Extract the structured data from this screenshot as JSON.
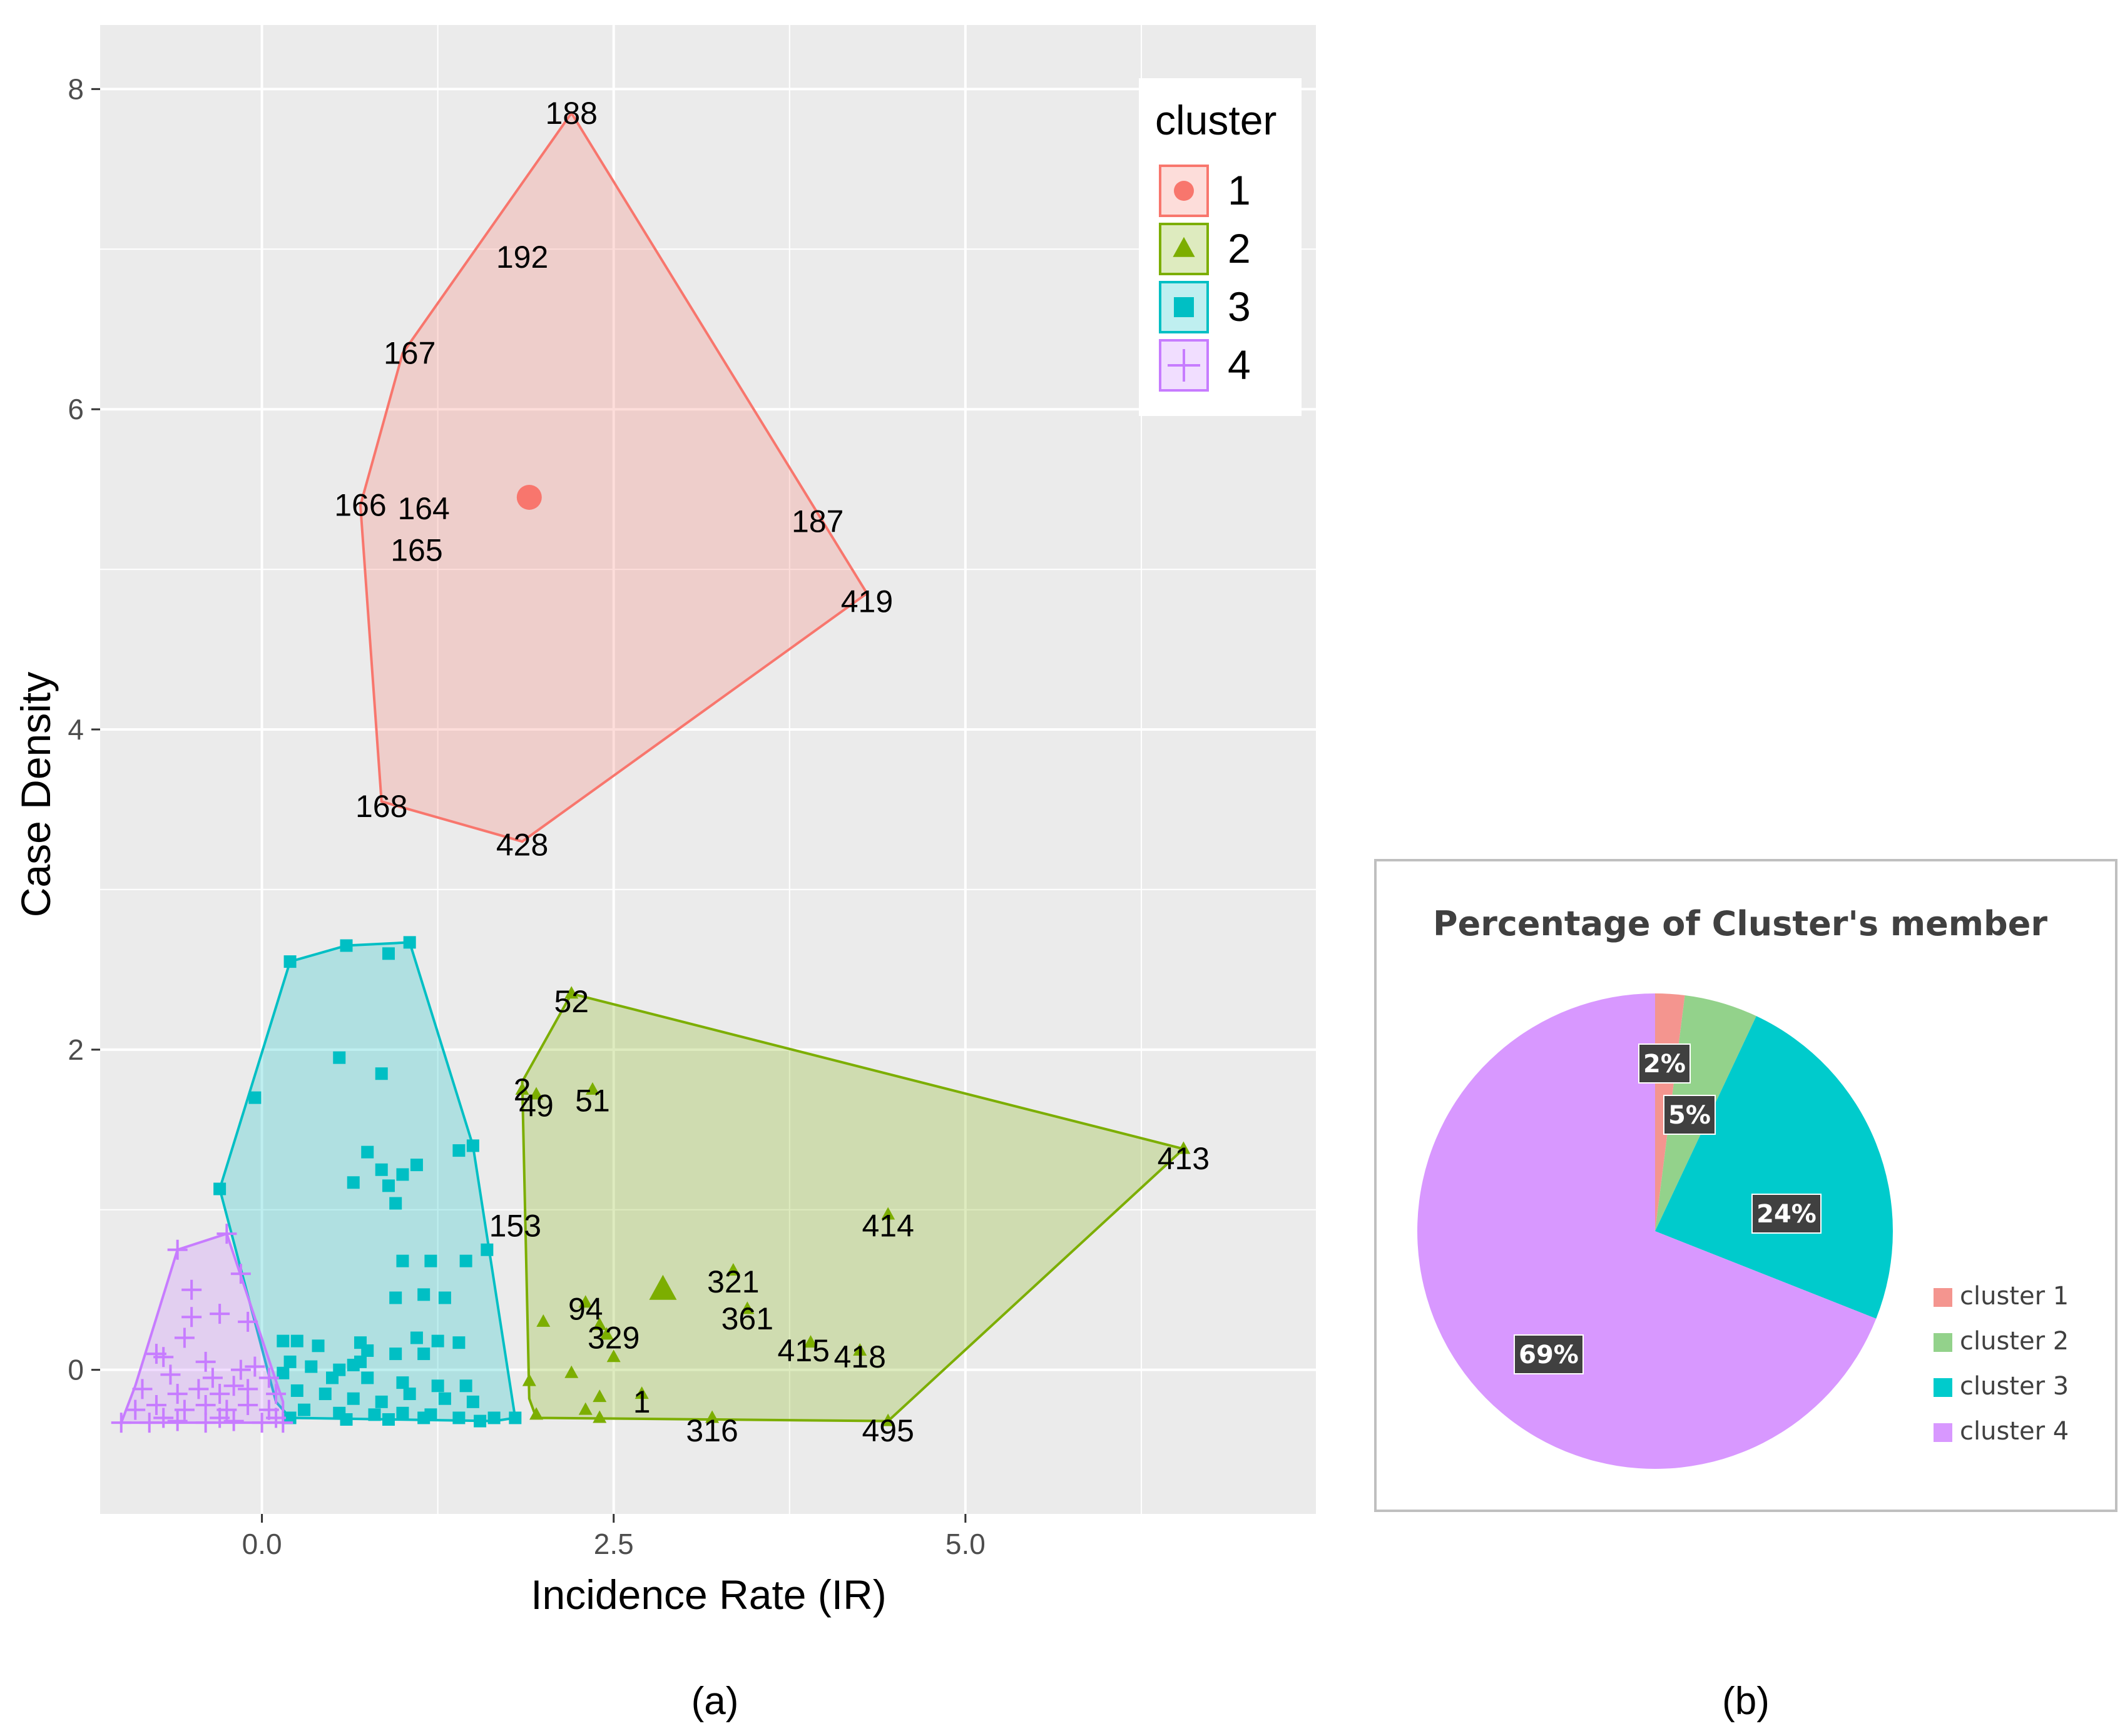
{
  "scatter": {
    "chart_data": {
      "type": "scatter",
      "xlabel": "Incidence Rate (IR)",
      "ylabel": "Case Density",
      "xlim": [
        -1.15,
        7.5
      ],
      "ylim": [
        -0.9,
        8.4
      ],
      "xticks": [
        0.0,
        2.5,
        5.0
      ],
      "xtick_labels": [
        "0.0",
        "2.5",
        "5.0"
      ],
      "yticks": [
        0,
        2,
        4,
        6,
        8
      ],
      "ytick_labels": [
        "0",
        "2",
        "4",
        "6",
        "8"
      ],
      "legend_title": "cluster",
      "legend_position": "top-right",
      "panel_caption": "(a)",
      "clusters": [
        {
          "name": "1",
          "shape": "circle",
          "color": "#F8766D",
          "hull": [
            [
              2.2,
              7.85
            ],
            [
              4.3,
              4.85
            ],
            [
              1.85,
              3.3
            ],
            [
              0.85,
              3.55
            ],
            [
              0.7,
              5.4
            ],
            [
              1.0,
              6.35
            ]
          ],
          "centroid": [
            1.9,
            5.45
          ],
          "labels": [
            {
              "text": "188",
              "x": 2.2,
              "y": 7.85
            },
            {
              "text": "192",
              "x": 1.85,
              "y": 6.95
            },
            {
              "text": "167",
              "x": 1.05,
              "y": 6.35
            },
            {
              "text": "166",
              "x": 0.7,
              "y": 5.4
            },
            {
              "text": "164",
              "x": 1.15,
              "y": 5.38
            },
            {
              "text": "165",
              "x": 1.1,
              "y": 5.12
            },
            {
              "text": "187",
              "x": 3.95,
              "y": 5.3
            },
            {
              "text": "419",
              "x": 4.3,
              "y": 4.8
            },
            {
              "text": "168",
              "x": 0.85,
              "y": 3.52
            },
            {
              "text": "428",
              "x": 1.85,
              "y": 3.28
            }
          ]
        },
        {
          "name": "2",
          "shape": "triangle",
          "color": "#7CAE00",
          "hull": [
            [
              2.2,
              2.35
            ],
            [
              6.55,
              1.38
            ],
            [
              4.45,
              -0.32
            ],
            [
              1.95,
              -0.3
            ],
            [
              1.9,
              -0.18
            ],
            [
              1.85,
              1.8
            ]
          ],
          "centroid": [
            2.85,
            0.5
          ],
          "points": [
            [
              2.2,
              2.35
            ],
            [
              1.85,
              1.75
            ],
            [
              1.95,
              1.72
            ],
            [
              2.35,
              1.75
            ],
            [
              6.55,
              1.38
            ],
            [
              4.45,
              0.97
            ],
            [
              3.35,
              0.62
            ],
            [
              3.45,
              0.38
            ],
            [
              2.3,
              0.42
            ],
            [
              2.4,
              0.28
            ],
            [
              2.0,
              0.3
            ],
            [
              2.5,
              0.08
            ],
            [
              2.45,
              0.22
            ],
            [
              3.9,
              0.17
            ],
            [
              4.25,
              0.12
            ],
            [
              2.2,
              -0.02
            ],
            [
              1.9,
              -0.07
            ],
            [
              2.4,
              -0.17
            ],
            [
              2.3,
              -0.25
            ],
            [
              2.7,
              -0.15
            ],
            [
              1.95,
              -0.28
            ],
            [
              2.4,
              -0.3
            ],
            [
              3.2,
              -0.3
            ],
            [
              4.45,
              -0.32
            ]
          ],
          "labels": [
            {
              "text": "52",
              "x": 2.2,
              "y": 2.3
            },
            {
              "text": "2",
              "x": 1.85,
              "y": 1.75
            },
            {
              "text": "49",
              "x": 1.95,
              "y": 1.65
            },
            {
              "text": "51",
              "x": 2.35,
              "y": 1.68
            },
            {
              "text": "413",
              "x": 6.55,
              "y": 1.32
            },
            {
              "text": "153",
              "x": 1.8,
              "y": 0.9
            },
            {
              "text": "414",
              "x": 4.45,
              "y": 0.9
            },
            {
              "text": "321",
              "x": 3.35,
              "y": 0.55
            },
            {
              "text": "361",
              "x": 3.45,
              "y": 0.32
            },
            {
              "text": "94",
              "x": 2.3,
              "y": 0.38
            },
            {
              "text": "329",
              "x": 2.5,
              "y": 0.2
            },
            {
              "text": "415",
              "x": 3.85,
              "y": 0.12
            },
            {
              "text": "418",
              "x": 4.25,
              "y": 0.08
            },
            {
              "text": "1",
              "x": 2.7,
              "y": -0.2
            },
            {
              "text": "316",
              "x": 3.2,
              "y": -0.38
            },
            {
              "text": "495",
              "x": 4.45,
              "y": -0.38
            }
          ]
        },
        {
          "name": "3",
          "shape": "square",
          "color": "#00BFC4",
          "hull": [
            [
              1.05,
              2.67
            ],
            [
              1.5,
              1.4
            ],
            [
              1.8,
              -0.3
            ],
            [
              1.65,
              -0.32
            ],
            [
              0.2,
              -0.3
            ],
            [
              0.1,
              -0.2
            ],
            [
              -0.3,
              1.13
            ],
            [
              0.2,
              2.55
            ],
            [
              0.6,
              2.65
            ]
          ],
          "points": [
            [
              1.05,
              2.67
            ],
            [
              0.6,
              2.65
            ],
            [
              0.9,
              2.6
            ],
            [
              0.2,
              2.55
            ],
            [
              0.55,
              1.95
            ],
            [
              0.85,
              1.85
            ],
            [
              -0.05,
              1.7
            ],
            [
              1.5,
              1.4
            ],
            [
              1.4,
              1.37
            ],
            [
              0.75,
              1.36
            ],
            [
              1.1,
              1.28
            ],
            [
              0.85,
              1.25
            ],
            [
              1.0,
              1.22
            ],
            [
              0.65,
              1.17
            ],
            [
              0.9,
              1.15
            ],
            [
              0.95,
              1.04
            ],
            [
              -0.3,
              1.13
            ],
            [
              1.6,
              0.75
            ],
            [
              1.0,
              0.68
            ],
            [
              1.2,
              0.68
            ],
            [
              1.45,
              0.68
            ],
            [
              0.95,
              0.45
            ],
            [
              1.15,
              0.47
            ],
            [
              1.3,
              0.45
            ],
            [
              1.1,
              0.2
            ],
            [
              1.25,
              0.18
            ],
            [
              1.4,
              0.17
            ],
            [
              0.15,
              0.18
            ],
            [
              0.25,
              0.18
            ],
            [
              0.4,
              0.15
            ],
            [
              0.7,
              0.17
            ],
            [
              0.75,
              0.12
            ],
            [
              0.7,
              0.05
            ],
            [
              0.95,
              0.1
            ],
            [
              1.15,
              0.1
            ],
            [
              0.2,
              0.05
            ],
            [
              0.35,
              0.02
            ],
            [
              0.55,
              0.0
            ],
            [
              0.65,
              0.03
            ],
            [
              0.15,
              -0.02
            ],
            [
              0.5,
              -0.05
            ],
            [
              0.75,
              -0.05
            ],
            [
              1.0,
              -0.08
            ],
            [
              1.25,
              -0.1
            ],
            [
              1.45,
              -0.1
            ],
            [
              0.25,
              -0.13
            ],
            [
              0.45,
              -0.15
            ],
            [
              0.65,
              -0.18
            ],
            [
              0.85,
              -0.2
            ],
            [
              1.05,
              -0.15
            ],
            [
              1.3,
              -0.18
            ],
            [
              1.5,
              -0.2
            ],
            [
              0.3,
              -0.25
            ],
            [
              0.55,
              -0.27
            ],
            [
              0.8,
              -0.28
            ],
            [
              1.0,
              -0.27
            ],
            [
              1.2,
              -0.28
            ],
            [
              1.4,
              -0.3
            ],
            [
              1.65,
              -0.3
            ],
            [
              1.8,
              -0.3
            ],
            [
              0.2,
              -0.3
            ],
            [
              0.6,
              -0.31
            ],
            [
              0.9,
              -0.31
            ],
            [
              1.15,
              -0.3
            ],
            [
              1.55,
              -0.32
            ]
          ],
          "labels": []
        },
        {
          "name": "4",
          "shape": "plus",
          "color": "#C77CFF",
          "hull": [
            [
              -0.25,
              0.85
            ],
            [
              0.15,
              -0.2
            ],
            [
              0.15,
              -0.33
            ],
            [
              -1.0,
              -0.33
            ],
            [
              -0.9,
              -0.1
            ],
            [
              -0.6,
              0.75
            ]
          ],
          "points": [
            [
              -0.25,
              0.85
            ],
            [
              -0.6,
              0.75
            ],
            [
              -0.15,
              0.6
            ],
            [
              -0.5,
              0.5
            ],
            [
              -0.5,
              0.33
            ],
            [
              -0.3,
              0.35
            ],
            [
              -0.1,
              0.3
            ],
            [
              -0.55,
              0.2
            ],
            [
              -0.75,
              0.1
            ],
            [
              -0.7,
              0.08
            ],
            [
              -0.4,
              0.05
            ],
            [
              -0.35,
              -0.05
            ],
            [
              -0.65,
              -0.03
            ],
            [
              -0.15,
              0.0
            ],
            [
              -0.05,
              0.02
            ],
            [
              0.05,
              -0.05
            ],
            [
              -0.85,
              -0.12
            ],
            [
              -0.6,
              -0.15
            ],
            [
              -0.45,
              -0.12
            ],
            [
              -0.3,
              -0.15
            ],
            [
              -0.2,
              -0.1
            ],
            [
              -0.1,
              -0.12
            ],
            [
              0.1,
              -0.15
            ],
            [
              -0.9,
              -0.25
            ],
            [
              -0.75,
              -0.22
            ],
            [
              -0.55,
              -0.25
            ],
            [
              -0.4,
              -0.22
            ],
            [
              -0.25,
              -0.25
            ],
            [
              -0.1,
              -0.22
            ],
            [
              0.05,
              -0.25
            ],
            [
              -1.0,
              -0.33
            ],
            [
              -0.8,
              -0.33
            ],
            [
              -0.6,
              -0.32
            ],
            [
              -0.4,
              -0.33
            ],
            [
              -0.2,
              -0.32
            ],
            [
              0.0,
              -0.33
            ],
            [
              0.15,
              -0.33
            ],
            [
              -0.7,
              -0.3
            ],
            [
              -0.3,
              -0.3
            ],
            [
              0.1,
              -0.3
            ]
          ],
          "labels": []
        }
      ]
    }
  },
  "pie": {
    "chart_data": {
      "type": "pie",
      "title": "Percentage of Cluster's member",
      "categories": [
        "cluster 1",
        "cluster 2",
        "cluster 3",
        "cluster 4"
      ],
      "values": [
        2,
        5,
        24,
        69
      ],
      "slice_labels": [
        "2%",
        "5%",
        "24%",
        "69%"
      ],
      "colors": [
        "#F8766D",
        "#7CAE00",
        "#00BFC4",
        "#C77CFF"
      ],
      "display_colors": [
        "#F4958F",
        "#93D28B",
        "#00CBCC",
        "#D898FF"
      ],
      "legend_position": "bottom-right",
      "panel_caption": "(b)"
    }
  }
}
